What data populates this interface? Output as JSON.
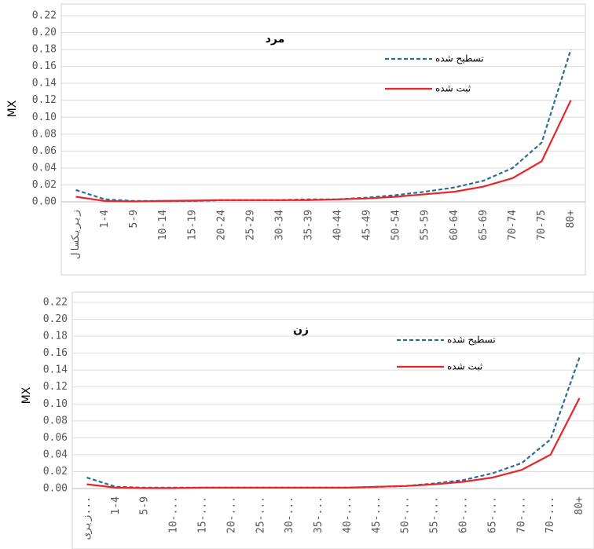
{
  "chart_data": [
    {
      "type": "line",
      "title": "مرد",
      "ylabel": "MX",
      "categories": [
        "زیریکسال",
        "1-4",
        "5-9",
        "10-14",
        "15-19",
        "20-24",
        "25-29",
        "30-34",
        "35-39",
        "40-44",
        "45-49",
        "50-54",
        "55-59",
        "60-64",
        "65-69",
        "70-74",
        "70-75",
        "80+"
      ],
      "series": [
        {
          "name": "تسطیح شده",
          "color": "#2f6b93",
          "linestyle": "dashed",
          "values": [
            0.014,
            0.003,
            0.001,
            0.001,
            0.001,
            0.002,
            0.002,
            0.002,
            0.003,
            0.003,
            0.005,
            0.008,
            0.012,
            0.017,
            0.025,
            0.04,
            0.07,
            0.18
          ]
        },
        {
          "name": "ثبت شده",
          "color": "#e8262a",
          "linestyle": "solid",
          "values": [
            0.006,
            0.001,
            0.0005,
            0.001,
            0.0015,
            0.002,
            0.002,
            0.002,
            0.002,
            0.003,
            0.004,
            0.006,
            0.009,
            0.012,
            0.018,
            0.028,
            0.048,
            0.12
          ]
        }
      ],
      "ylim": [
        0,
        0.22
      ],
      "yticks": [
        {
          "value": 0,
          "label": "0.00"
        },
        {
          "value": 0.02,
          "label": "0.02"
        },
        {
          "value": 0.04,
          "label": "0.04"
        },
        {
          "value": 0.06,
          "label": "0.06"
        },
        {
          "value": 0.08,
          "label": "0.08"
        },
        {
          "value": 0.1,
          "label": "0.10"
        },
        {
          "value": 0.12,
          "label": "0.12"
        },
        {
          "value": 0.14,
          "label": "0.14"
        },
        {
          "value": 0.16,
          "label": "0.16"
        },
        {
          "value": 0.18,
          "label": "0.18"
        },
        {
          "value": 0.2,
          "label": "0.20"
        },
        {
          "value": 0.22,
          "label": "0.22"
        }
      ],
      "grid": true
    },
    {
      "type": "line",
      "title": "زن",
      "ylabel": "MX",
      "categories": [
        "زیری...",
        "1-4",
        "5-9",
        "10-...",
        "15-...",
        "20-...",
        "25-...",
        "30-...",
        "35-...",
        "40-...",
        "45-...",
        "50-...",
        "55-...",
        "60-...",
        "65-...",
        "70-...",
        "70-...",
        "80+"
      ],
      "series": [
        {
          "name": "تسطیح شده",
          "color": "#2f6b93",
          "linestyle": "dashed",
          "values": [
            0.013,
            0.002,
            0.001,
            0.001,
            0.001,
            0.001,
            0.001,
            0.001,
            0.001,
            0.001,
            0.002,
            0.003,
            0.006,
            0.01,
            0.018,
            0.03,
            0.058,
            0.155
          ]
        },
        {
          "name": "ثبت شده",
          "color": "#e8262a",
          "linestyle": "solid",
          "values": [
            0.005,
            0.001,
            0.0005,
            0.0005,
            0.001,
            0.001,
            0.001,
            0.001,
            0.001,
            0.001,
            0.002,
            0.003,
            0.005,
            0.008,
            0.013,
            0.022,
            0.04,
            0.107
          ]
        }
      ],
      "ylim": [
        0,
        0.22
      ],
      "yticks": [
        {
          "value": 0,
          "label": "0.00"
        },
        {
          "value": 0.02,
          "label": "0.02"
        },
        {
          "value": 0.04,
          "label": "0.04"
        },
        {
          "value": 0.06,
          "label": "0.06"
        },
        {
          "value": 0.08,
          "label": "0.08"
        },
        {
          "value": 0.1,
          "label": "0.10"
        },
        {
          "value": 0.12,
          "label": "0.12"
        },
        {
          "value": 0.14,
          "label": "0.14"
        },
        {
          "value": 0.16,
          "label": "0.16"
        },
        {
          "value": 0.18,
          "label": "0.18"
        },
        {
          "value": 0.2,
          "label": "0.20"
        },
        {
          "value": 0.22,
          "label": "0.22"
        }
      ],
      "grid": true
    }
  ]
}
